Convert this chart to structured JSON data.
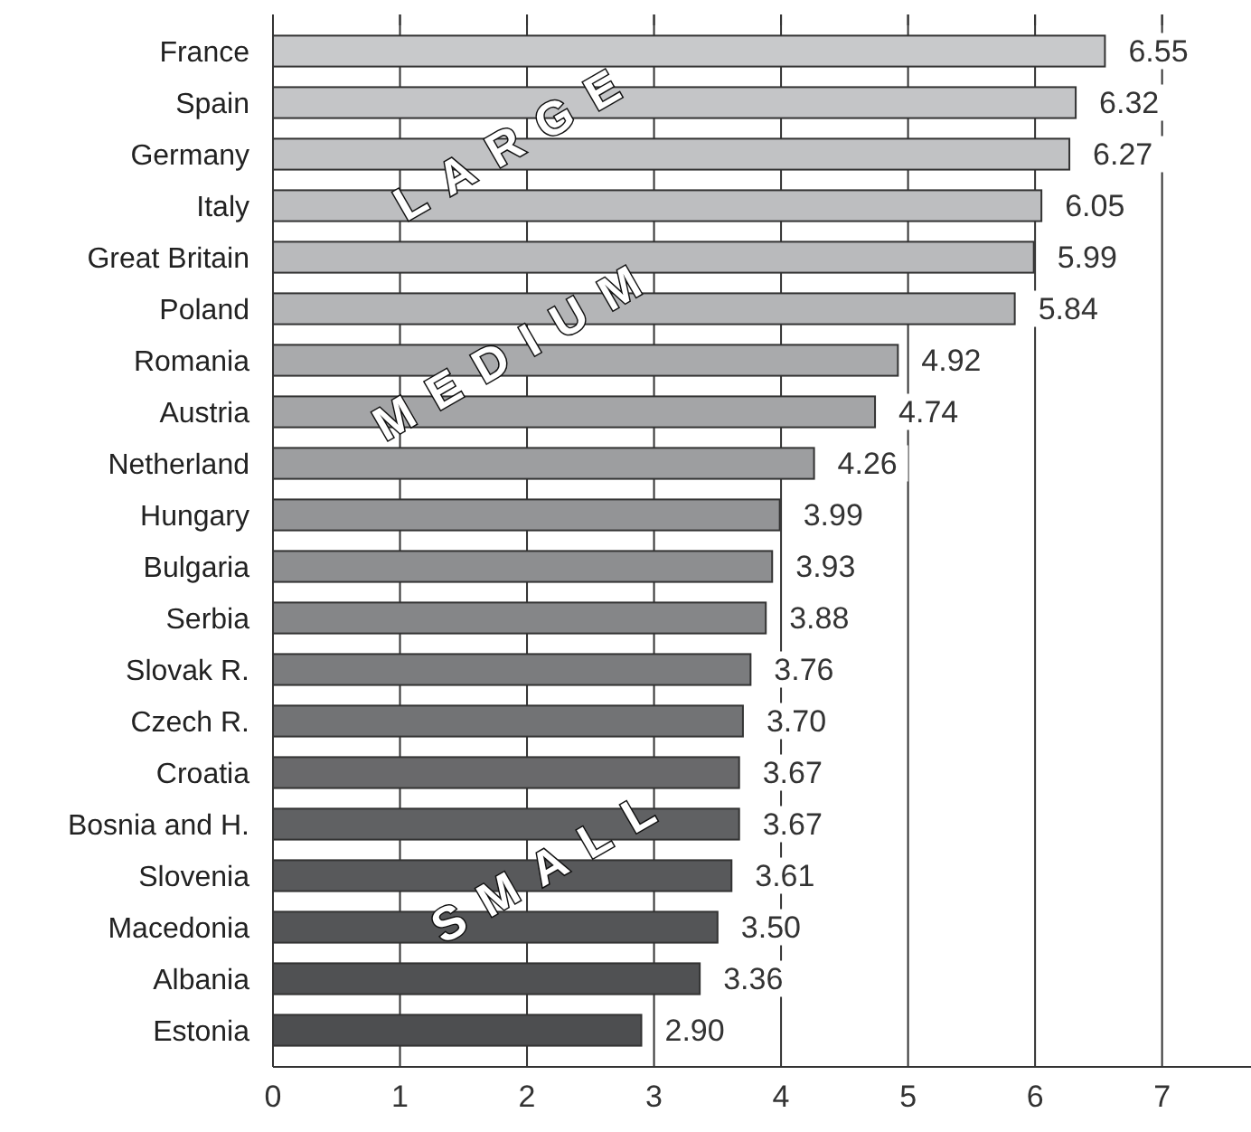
{
  "chart_data": {
    "type": "bar",
    "orientation": "horizontal",
    "categories": [
      "France",
      "Spain",
      "Germany",
      "Italy",
      "Great Britain",
      "Poland",
      "Romania",
      "Austria",
      "Netherland",
      "Hungary",
      "Bulgaria",
      "Serbia",
      "Slovak R.",
      "Czech R.",
      "Croatia",
      "Bosnia and H.",
      "Slovenia",
      "Macedonia",
      "Albania",
      "Estonia"
    ],
    "values": [
      6.55,
      6.32,
      6.27,
      6.05,
      5.99,
      5.84,
      4.92,
      4.74,
      4.26,
      3.99,
      3.93,
      3.88,
      3.76,
      3.7,
      3.67,
      3.67,
      3.61,
      3.5,
      3.36,
      2.9
    ],
    "value_labels": [
      "6.55",
      "6.32",
      "6.27",
      "6.05",
      "5.99",
      "5.84",
      "4.92",
      "4.74",
      "4.26",
      "3.99",
      "3.93",
      "3.88",
      "3.76",
      "3.70",
      "3.67",
      "3.67",
      "3.61",
      "3.50",
      "3.36",
      "2.90"
    ],
    "colors": [
      "#c8c9cb",
      "#c4c5c7",
      "#c1c2c4",
      "#bdbec0",
      "#b9babc",
      "#b4b5b7",
      "#a9aaac",
      "#a4a5a7",
      "#9d9ea0",
      "#939496",
      "#8d8e90",
      "#858688",
      "#7b7c7e",
      "#727375",
      "#69696b",
      "#606163",
      "#58595b",
      "#545557",
      "#505153",
      "#4d4e50"
    ],
    "xlim": [
      0,
      7.7
    ],
    "xticks": [
      0,
      1,
      2,
      3,
      4,
      5,
      6,
      7
    ],
    "grid": "x",
    "annotations": [
      "LARGE",
      "MEDIUM",
      "SMALL"
    ]
  }
}
